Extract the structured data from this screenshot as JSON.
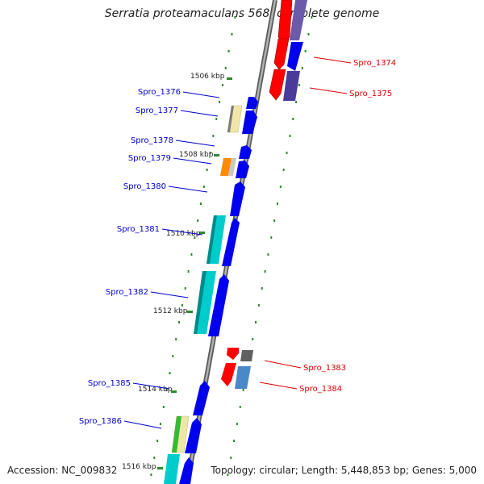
{
  "title": "Serratia proteamaculans 568, complete genome",
  "footer": {
    "accession": "Accession: NC_009832",
    "summary": "Topology: circular; Length: 5,448,853 bp; Genes: 5,000"
  },
  "colors": {
    "backbone": "#808080",
    "tick": "#2e8b2e",
    "forward_label": "#0000cc",
    "reverse_label": "#dd0000"
  },
  "ticks": [
    "1506 kbp",
    "1508 kbp",
    "1510 kbp",
    "1512 kbp",
    "1514 kbp",
    "1516 kbp"
  ],
  "genes": [
    {
      "label": "Spro_1374",
      "strand": "reverse"
    },
    {
      "label": "Spro_1375",
      "strand": "reverse"
    },
    {
      "label": "Spro_1376",
      "strand": "forward"
    },
    {
      "label": "Spro_1377",
      "strand": "forward"
    },
    {
      "label": "Spro_1378",
      "strand": "forward"
    },
    {
      "label": "Spro_1379",
      "strand": "forward"
    },
    {
      "label": "Spro_1380",
      "strand": "forward"
    },
    {
      "label": "Spro_1381",
      "strand": "forward"
    },
    {
      "label": "Spro_1382",
      "strand": "forward"
    },
    {
      "label": "Spro_1383",
      "strand": "reverse"
    },
    {
      "label": "Spro_1384",
      "strand": "reverse"
    },
    {
      "label": "Spro_1385",
      "strand": "forward"
    },
    {
      "label": "Spro_1386",
      "strand": "forward"
    }
  ]
}
